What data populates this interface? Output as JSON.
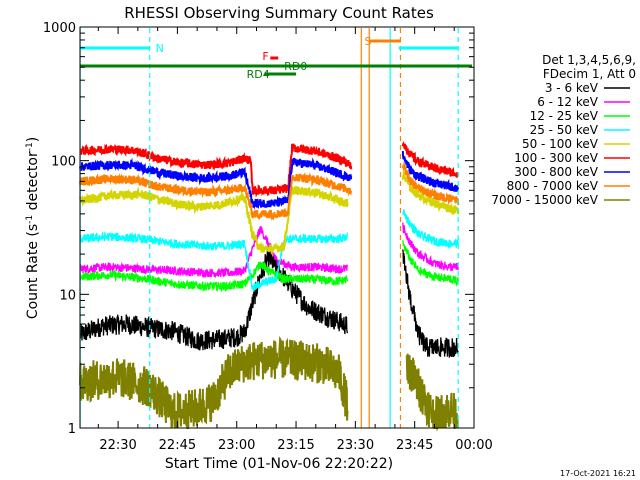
{
  "chart_data": {
    "type": "line",
    "title": "RHESSI Observing Summary Count Rates",
    "xlabel": "Start Time (01-Nov-06 22:20:22)",
    "ylabel_main": "Count Rate (s",
    "ylabel_sup1": "-1",
    "ylabel_mid": " detector",
    "ylabel_sup2": "-1",
    "ylabel_end": ")",
    "timestamp": "17-Oct-2021 16:21",
    "x_start_min": 20.37,
    "x_end_min": 100.0,
    "ylim": [
      1,
      1000
    ],
    "y_scale": "log",
    "x_ticks": [
      {
        "min": 30,
        "label": "22:30"
      },
      {
        "min": 45,
        "label": "22:45"
      },
      {
        "min": 60,
        "label": "23:00"
      },
      {
        "min": 75,
        "label": "23:15"
      },
      {
        "min": 90,
        "label": "23:30"
      },
      {
        "min": 105,
        "label": "23:45"
      },
      {
        "min": 120,
        "label": "00:00"
      }
    ],
    "y_ticks": [
      {
        "value": 1,
        "label": "1"
      },
      {
        "value": 10,
        "label": "10"
      },
      {
        "value": 100,
        "label": "100"
      },
      {
        "value": 1000,
        "label": "1000"
      }
    ],
    "legend": {
      "placement": "right",
      "header1": "Det 1,3,4,5,6,9,",
      "header2": "FDecim 1, Att 0"
    },
    "series": [
      {
        "name": "3 - 6 keV",
        "color": "#000000",
        "points": [
          [
            20.4,
            5
          ],
          [
            26,
            5.8
          ],
          [
            32,
            6
          ],
          [
            38,
            5.6
          ],
          [
            44,
            5.3
          ],
          [
            50,
            4.5
          ],
          [
            56,
            4.6
          ],
          [
            60,
            4.8
          ],
          [
            62,
            5.2
          ],
          [
            66,
            14
          ],
          [
            68,
            19
          ],
          [
            70,
            16
          ],
          [
            74,
            11
          ],
          [
            78,
            8
          ],
          [
            82,
            7
          ],
          [
            86,
            6.2
          ],
          [
            88,
            5.8
          ]
        ]
      },
      {
        "name": "6 - 12 keV",
        "color": "#ff00ff",
        "points": [
          [
            20.4,
            15.5
          ],
          [
            28,
            16
          ],
          [
            36,
            15.5
          ],
          [
            44,
            15
          ],
          [
            52,
            14.5
          ],
          [
            58,
            14.5
          ],
          [
            62,
            15
          ],
          [
            64,
            22
          ],
          [
            66,
            31
          ],
          [
            68,
            24
          ],
          [
            70,
            18
          ],
          [
            74,
            16
          ],
          [
            80,
            16
          ],
          [
            86,
            15.5
          ],
          [
            88,
            15.5
          ]
        ]
      },
      {
        "name": "12 - 25 keV",
        "color": "#00ff00",
        "points": [
          [
            20.4,
            13.5
          ],
          [
            28,
            14
          ],
          [
            36,
            13.2
          ],
          [
            44,
            12
          ],
          [
            52,
            11.5
          ],
          [
            58,
            11.5
          ],
          [
            62,
            12
          ],
          [
            64,
            14
          ],
          [
            66,
            17
          ],
          [
            68,
            15
          ],
          [
            72,
            13
          ],
          [
            78,
            13
          ],
          [
            86,
            12.5
          ],
          [
            88,
            13
          ]
        ]
      },
      {
        "name": "25 - 50 keV",
        "color": "#00ffff",
        "points": [
          [
            20.4,
            26
          ],
          [
            28,
            27
          ],
          [
            36,
            26
          ],
          [
            44,
            24
          ],
          [
            52,
            23
          ],
          [
            58,
            23
          ],
          [
            62,
            24
          ],
          [
            64,
            11
          ],
          [
            66,
            12
          ],
          [
            68,
            12.5
          ],
          [
            70,
            13
          ],
          [
            72,
            26
          ],
          [
            80,
            26
          ],
          [
            86,
            26
          ],
          [
            88,
            27
          ]
        ]
      },
      {
        "name": "50 - 100 keV",
        "color": "#d4d400",
        "points": [
          [
            20.4,
            50
          ],
          [
            28,
            55
          ],
          [
            36,
            56
          ],
          [
            44,
            48
          ],
          [
            50,
            45
          ],
          [
            56,
            47
          ],
          [
            62,
            53
          ],
          [
            64,
            28
          ],
          [
            66,
            22
          ],
          [
            70,
            22
          ],
          [
            72,
            23
          ],
          [
            74,
            60
          ],
          [
            80,
            58
          ],
          [
            86,
            50
          ],
          [
            88,
            48
          ]
        ]
      },
      {
        "name": "100 - 300 keV",
        "color": "#ff0000",
        "points": [
          [
            20.4,
            118
          ],
          [
            28,
            122
          ],
          [
            34,
            120
          ],
          [
            40,
            104
          ],
          [
            46,
            96
          ],
          [
            52,
            93
          ],
          [
            58,
            96
          ],
          [
            62,
            104
          ],
          [
            63.5,
            100
          ],
          [
            64,
            60
          ],
          [
            70,
            60
          ],
          [
            73,
            62
          ],
          [
            74,
            125
          ],
          [
            80,
            118
          ],
          [
            86,
            103
          ],
          [
            89,
            92
          ]
        ]
      },
      {
        "name": "300 - 800 keV",
        "color": "#0000ff",
        "points": [
          [
            20.4,
            90
          ],
          [
            28,
            93
          ],
          [
            34,
            92
          ],
          [
            40,
            82
          ],
          [
            46,
            76
          ],
          [
            52,
            74
          ],
          [
            58,
            77
          ],
          [
            62,
            82
          ],
          [
            64,
            48
          ],
          [
            70,
            48
          ],
          [
            73,
            50
          ],
          [
            74,
            98
          ],
          [
            80,
            92
          ],
          [
            86,
            80
          ],
          [
            89,
            74
          ]
        ]
      },
      {
        "name": "800 - 7000 keV",
        "color": "#ff8000",
        "points": [
          [
            20.4,
            70
          ],
          [
            28,
            73
          ],
          [
            34,
            72
          ],
          [
            40,
            64
          ],
          [
            46,
            60
          ],
          [
            52,
            58
          ],
          [
            58,
            60
          ],
          [
            62,
            63
          ],
          [
            64,
            40
          ],
          [
            70,
            40
          ],
          [
            73,
            41
          ],
          [
            74,
            76
          ],
          [
            80,
            72
          ],
          [
            86,
            64
          ],
          [
            89,
            60
          ]
        ]
      },
      {
        "name": "7000 - 15000 keV",
        "color": "#808000",
        "points": [
          [
            20.4,
            2.2
          ],
          [
            30,
            2.4
          ],
          [
            38,
            2.0
          ],
          [
            44,
            1.3
          ],
          [
            50,
            1.4
          ],
          [
            54,
            1.6
          ],
          [
            58,
            2.6
          ],
          [
            62,
            3.1
          ],
          [
            68,
            3.3
          ],
          [
            76,
            3.2
          ],
          [
            82,
            3.0
          ],
          [
            86,
            2.5
          ],
          [
            88,
            1.5
          ]
        ]
      }
    ],
    "series_late": [
      {
        "color": "#000000",
        "points": [
          [
            102,
            19
          ],
          [
            104,
            9
          ],
          [
            106,
            5
          ],
          [
            108,
            4
          ],
          [
            112,
            4
          ],
          [
            116,
            4
          ]
        ]
      },
      {
        "color": "#ff00ff",
        "points": [
          [
            102,
            32
          ],
          [
            104,
            24
          ],
          [
            106,
            20
          ],
          [
            110,
            17
          ],
          [
            114,
            16
          ],
          [
            116,
            16
          ]
        ]
      },
      {
        "color": "#00ff00",
        "points": [
          [
            102,
            24
          ],
          [
            104,
            18
          ],
          [
            106,
            15
          ],
          [
            110,
            13.5
          ],
          [
            114,
            13
          ],
          [
            116,
            12.5
          ]
        ]
      },
      {
        "color": "#00ffff",
        "points": [
          [
            102,
            42
          ],
          [
            104,
            33
          ],
          [
            106,
            28
          ],
          [
            110,
            25
          ],
          [
            114,
            24
          ],
          [
            116,
            24
          ]
        ]
      },
      {
        "color": "#d4d400",
        "points": [
          [
            102,
            80
          ],
          [
            104,
            62
          ],
          [
            106,
            55
          ],
          [
            110,
            48
          ],
          [
            114,
            44
          ],
          [
            116,
            42
          ]
        ]
      },
      {
        "color": "#ff0000",
        "points": [
          [
            102,
            138
          ],
          [
            104,
            110
          ],
          [
            106,
            98
          ],
          [
            110,
            88
          ],
          [
            114,
            82
          ],
          [
            116,
            80
          ]
        ]
      },
      {
        "color": "#0000ff",
        "points": [
          [
            102,
            110
          ],
          [
            104,
            84
          ],
          [
            106,
            76
          ],
          [
            110,
            68
          ],
          [
            114,
            64
          ],
          [
            116,
            62
          ]
        ]
      },
      {
        "color": "#ff8000",
        "points": [
          [
            102,
            92
          ],
          [
            104,
            70
          ],
          [
            106,
            62
          ],
          [
            110,
            55
          ],
          [
            114,
            52
          ],
          [
            116,
            50
          ]
        ]
      },
      {
        "color": "#808000",
        "points": [
          [
            103,
            3
          ],
          [
            106,
            2
          ],
          [
            110,
            1.2
          ],
          [
            114,
            1.4
          ],
          [
            116,
            1.2
          ]
        ]
      }
    ],
    "night_markers": [
      {
        "label": "N",
        "bar_start_min": 20.4,
        "bar_end_min": 38,
        "label_min": 39.5
      },
      {
        "label": "",
        "bar_start_min": 101,
        "bar_end_min": 116,
        "label_min": null
      }
    ],
    "saa_marker": {
      "label": "S",
      "bar_start_min": 93.5,
      "bar_end_min": 101.5,
      "label_min": 92.3
    },
    "flare_marker": {
      "label": "F",
      "bar_start_min": 68.5,
      "bar_end_min": 70.5,
      "label_min": 66.5
    },
    "decimation_markers": [
      {
        "label": "RD0",
        "bar_start_min": 68.5,
        "bar_end_min": 70.5,
        "label_min": 72
      },
      {
        "label": "RD4",
        "bar_start_min": 67,
        "bar_end_min": 75,
        "label_min": 62.5
      }
    ],
    "vertical_lines": [
      {
        "min": 20.4,
        "color": "#00ffff",
        "dash": false
      },
      {
        "min": 38,
        "color": "#00ffff",
        "dash": true
      },
      {
        "min": 91.5,
        "color": "#ff8000",
        "dash": false
      },
      {
        "min": 93.5,
        "color": "#ff8000",
        "dash": false
      },
      {
        "min": 98.8,
        "color": "#00ffff",
        "dash": false
      },
      {
        "min": 101.4,
        "color": "#ff8000",
        "dash": true
      },
      {
        "min": 116,
        "color": "#00ffff",
        "dash": true
      }
    ]
  }
}
